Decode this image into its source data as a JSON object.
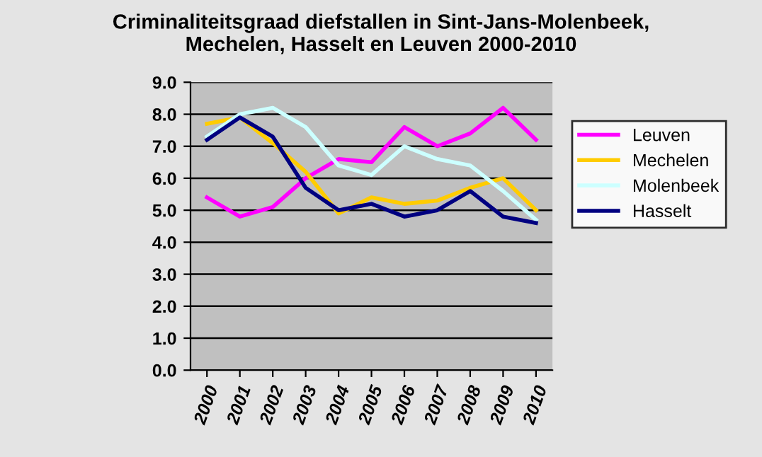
{
  "chart_data": {
    "type": "line",
    "title": "Criminaliteitsgraad diefstallen in Sint-Jans-Molenbeek,\nMechelen, Hasselt en Leuven 2000-2010",
    "categories": [
      "2000",
      "2001",
      "2002",
      "2003",
      "2004",
      "2005",
      "2006",
      "2007",
      "2008",
      "2009",
      "2010"
    ],
    "series": [
      {
        "name": "Leuven",
        "color": "#ff00ff",
        "values": [
          5.4,
          4.8,
          5.1,
          6.0,
          6.6,
          6.5,
          7.6,
          7.0,
          7.4,
          8.2,
          7.2
        ]
      },
      {
        "name": "Mechelen",
        "color": "#ffcc00",
        "values": [
          7.7,
          7.9,
          7.1,
          6.2,
          4.9,
          5.4,
          5.2,
          5.3,
          5.7,
          6.0,
          5.0
        ]
      },
      {
        "name": "Molenbeek",
        "color": "#ccffff",
        "values": [
          7.3,
          8.0,
          8.2,
          7.6,
          6.4,
          6.1,
          7.0,
          6.6,
          6.4,
          5.6,
          4.7
        ]
      },
      {
        "name": "Hasselt",
        "color": "#000080",
        "values": [
          7.2,
          7.9,
          7.3,
          5.7,
          5.0,
          5.2,
          4.8,
          5.0,
          5.6,
          4.8,
          4.6
        ]
      }
    ],
    "ylim": [
      0,
      9
    ],
    "yticks": [
      {
        "value": 0,
        "label": "0.0"
      },
      {
        "value": 1,
        "label": "1.0"
      },
      {
        "value": 2,
        "label": "2.0"
      },
      {
        "value": 3,
        "label": "3.0"
      },
      {
        "value": 4,
        "label": "4.0"
      },
      {
        "value": 5,
        "label": "5.0"
      },
      {
        "value": 6,
        "label": "6.0"
      },
      {
        "value": 7,
        "label": "7.0"
      },
      {
        "value": 8,
        "label": "8.0"
      },
      {
        "value": 9,
        "label": "9.0"
      }
    ],
    "grid": "y",
    "legend": "right"
  }
}
